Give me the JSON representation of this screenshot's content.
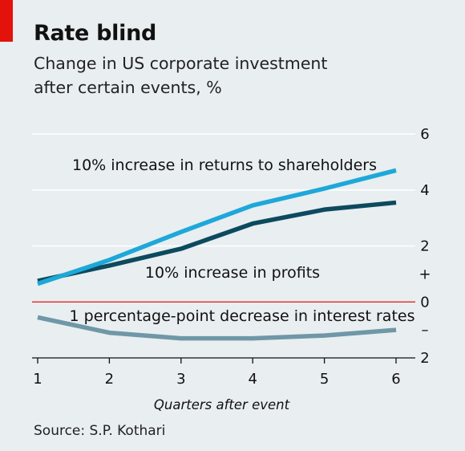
{
  "header": {
    "title": "Rate blind",
    "subtitle_line1": "Change in US corporate investment",
    "subtitle_line2": "after certain events, %"
  },
  "source": "Source: S.P. Kothari",
  "colors": {
    "background": "#e9eef0",
    "accent_tag": "#e3120b",
    "zero_line": "#e3120b",
    "gridline": "#ffffff",
    "axis": "#111111"
  },
  "chart_data": {
    "type": "line",
    "xlabel": "Quarters after event",
    "ylabel": "",
    "x": [
      1,
      2,
      3,
      4,
      5,
      6
    ],
    "xlim": [
      1,
      6
    ],
    "ylim": [
      -2,
      6
    ],
    "yticks": [
      {
        "value": 6,
        "label": "6"
      },
      {
        "value": 4,
        "label": "4"
      },
      {
        "value": 2,
        "label": "2"
      },
      {
        "value": 1,
        "label": "+"
      },
      {
        "value": 0,
        "label": "0"
      },
      {
        "value": -1,
        "label": "–"
      },
      {
        "value": -2,
        "label": "2"
      }
    ],
    "xticks": [
      "1",
      "2",
      "3",
      "4",
      "5",
      "6"
    ],
    "grid": true,
    "series": [
      {
        "name": "10% increase in returns to shareholders",
        "color": "#1ea8d9",
        "values": [
          0.65,
          1.5,
          2.5,
          3.45,
          4.05,
          4.7
        ]
      },
      {
        "name": "10% increase in profits",
        "color": "#0c4a5e",
        "values": [
          0.75,
          1.3,
          1.9,
          2.8,
          3.3,
          3.55
        ]
      },
      {
        "name": "1 percentage-point decrease in interest rates",
        "color": "#6f97a7",
        "values": [
          -0.55,
          -1.1,
          -1.3,
          -1.3,
          -1.2,
          -1.0
        ]
      }
    ]
  }
}
